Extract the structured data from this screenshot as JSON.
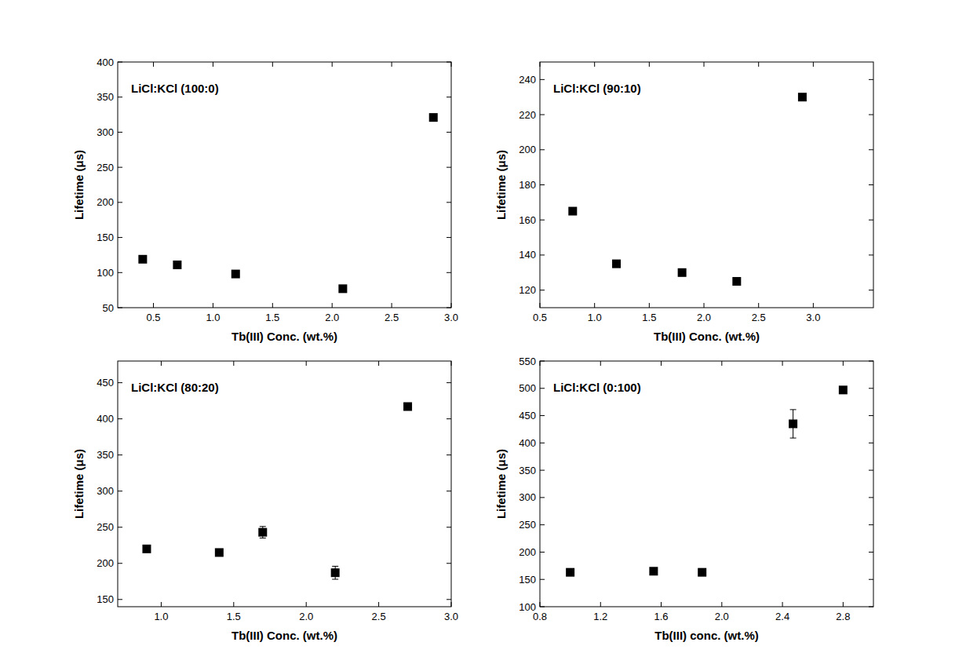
{
  "chart_data": [
    {
      "type": "scatter",
      "title": "LiCl:KCl (100:0)",
      "x_label": "Tb(III) Conc. (wt.%)",
      "y_label": "Lifetime (μs)",
      "x": [
        0.41,
        0.7,
        1.19,
        2.09,
        2.85
      ],
      "values": [
        119,
        111,
        98,
        77,
        321
      ],
      "errors": [
        null,
        null,
        null,
        null,
        null
      ],
      "color": "#000000",
      "marker": "square",
      "xlim": [
        0.2,
        3.0
      ],
      "xticks": [
        0.5,
        {
          "value": 1,
          "label": "1.0"
        },
        1.5,
        {
          "value": 2,
          "label": "2.0"
        },
        2.5,
        {
          "value": 3,
          "label": "3.0"
        }
      ],
      "ylim": [
        50,
        400
      ],
      "yticks": [
        50,
        100,
        150,
        200,
        250,
        300,
        350,
        400
      ],
      "grid": false
    },
    {
      "type": "scatter",
      "title": "LiCl:KCl (90:10)",
      "x_label": "Tb(III) Conc. (wt.%)",
      "y_label": "Lifetime (μs)",
      "x": [
        0.8,
        1.2,
        1.8,
        2.3,
        2.9
      ],
      "values": [
        165,
        135,
        130,
        125,
        230
      ],
      "errors": [
        null,
        null,
        null,
        null,
        null
      ],
      "color": "#000000",
      "marker": "square",
      "xlim": [
        0.5,
        3.55
      ],
      "xticks": [
        0.5,
        {
          "value": 1,
          "label": "1.0"
        },
        1.5,
        {
          "value": 2,
          "label": "2.0"
        },
        2.5,
        {
          "value": 3,
          "label": "3.0"
        }
      ],
      "ylim": [
        110,
        250
      ],
      "yticks": [
        120,
        140,
        160,
        180,
        200,
        220,
        240
      ],
      "grid": false
    },
    {
      "type": "scatter",
      "title": "LiCl:KCl (80:20)",
      "x_label": "Tb(III) Conc. (wt.%)",
      "y_label": "Lifetime (μs)",
      "x": [
        0.9,
        1.4,
        1.7,
        2.2,
        2.7
      ],
      "values": [
        220,
        215,
        243,
        187,
        417
      ],
      "errors": [
        null,
        null,
        8,
        9,
        null
      ],
      "color": "#000000",
      "marker": "square",
      "xlim": [
        0.7,
        3.0
      ],
      "xticks": [
        {
          "value": 1,
          "label": "1.0"
        },
        1.5,
        {
          "value": 2,
          "label": "2.0"
        },
        2.5,
        {
          "value": 3,
          "label": "3.0"
        }
      ],
      "ylim": [
        140,
        480
      ],
      "yticks": [
        150,
        200,
        250,
        300,
        350,
        400,
        450
      ],
      "grid": false
    },
    {
      "type": "scatter",
      "title": "LiCl:KCl (0:100)",
      "x_label": "Tb(III) conc. (wt.%)",
      "y_label": "Lifetime (μs)",
      "x": [
        1.0,
        1.55,
        1.87,
        2.47,
        2.8
      ],
      "values": [
        163,
        165,
        163,
        435,
        497
      ],
      "errors": [
        null,
        null,
        null,
        26,
        null
      ],
      "color": "#000000",
      "marker": "square",
      "xlim": [
        0.8,
        3.0
      ],
      "xticks": [
        0.8,
        1.2,
        1.6,
        {
          "value": 2,
          "label": "2.0"
        },
        2.4,
        2.8
      ],
      "ylim": [
        100,
        550
      ],
      "yticks": [
        100,
        150,
        200,
        250,
        300,
        350,
        400,
        450,
        500,
        550
      ],
      "grid": false
    }
  ]
}
